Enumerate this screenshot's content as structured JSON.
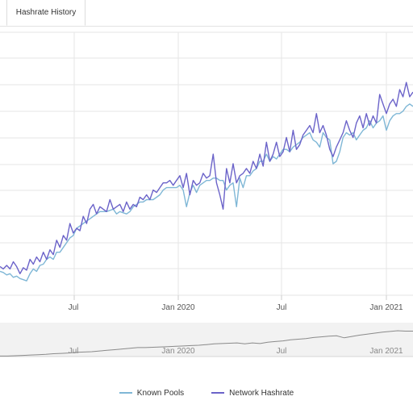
{
  "tabs": [
    {
      "label": "Hashrate History"
    }
  ],
  "chart_data": {
    "type": "line",
    "title": "",
    "xlabel": "",
    "ylabel": "",
    "x_ticks": [
      "Jul",
      "Jan 2020",
      "Jul",
      "Jan 2021"
    ],
    "navigator_ticks": [
      "Jul",
      "Jan 2020",
      "Jul",
      "Jan 2021"
    ],
    "grid": true,
    "legend_position": "bottom-center",
    "ylim": [
      0,
      11
    ],
    "x": [
      0,
      1,
      2,
      3,
      4,
      5,
      6,
      7,
      8,
      9,
      10,
      11,
      12,
      13,
      14,
      15,
      16,
      17,
      18,
      19,
      20,
      21,
      22,
      23,
      24,
      25,
      26,
      27,
      28,
      29,
      30,
      31,
      32,
      33,
      34,
      35,
      36,
      37,
      38,
      39,
      40,
      41,
      42,
      43,
      44,
      45,
      46,
      47,
      48,
      49,
      50,
      51,
      52,
      53,
      54,
      55,
      56,
      57,
      58,
      59,
      60,
      61,
      62,
      63,
      64,
      65,
      66,
      67,
      68,
      69,
      70,
      71,
      72,
      73,
      74,
      75,
      76,
      77,
      78,
      79,
      80,
      81,
      82,
      83,
      84,
      85,
      86,
      87,
      88,
      89,
      90,
      91,
      92,
      93,
      94,
      95,
      96,
      97,
      98,
      99,
      100,
      101,
      102,
      103,
      104,
      105,
      106,
      107,
      108,
      109,
      110,
      111,
      112,
      113,
      114,
      115,
      116,
      117,
      118,
      119,
      120,
      121,
      122,
      123,
      124
    ],
    "series": [
      {
        "name": "Known Pools",
        "color": "#7fb7d6",
        "values": [
          1.0,
          0.95,
          0.85,
          0.9,
          0.75,
          0.8,
          0.7,
          0.65,
          0.6,
          0.9,
          1.1,
          1.0,
          1.25,
          1.3,
          1.5,
          1.6,
          1.5,
          1.8,
          1.8,
          2.0,
          2.2,
          2.4,
          2.5,
          2.8,
          2.9,
          3.0,
          3.1,
          3.2,
          3.3,
          3.4,
          3.5,
          3.5,
          3.5,
          3.55,
          3.6,
          3.4,
          3.5,
          3.45,
          3.4,
          3.5,
          3.7,
          3.8,
          3.9,
          3.9,
          4.0,
          4.0,
          4.0,
          4.1,
          4.2,
          4.4,
          4.5,
          4.5,
          4.5,
          4.5,
          4.6,
          4.4,
          3.7,
          4.3,
          4.6,
          4.3,
          4.6,
          4.7,
          4.8,
          4.8,
          4.9,
          4.9,
          4.8,
          4.8,
          4.4,
          4.6,
          4.7,
          3.7,
          4.9,
          4.5,
          5.0,
          5.0,
          5.2,
          5.3,
          5.6,
          5.6,
          5.9,
          5.6,
          5.8,
          5.7,
          5.9,
          6.1,
          6.1,
          6.0,
          6.2,
          6.3,
          6.4,
          6.6,
          6.7,
          6.8,
          6.5,
          6.4,
          6.2,
          6.8,
          6.6,
          6.5,
          5.5,
          5.6,
          6.0,
          6.6,
          6.8,
          6.7,
          6.8,
          6.5,
          6.7,
          6.9,
          7.0,
          7.3,
          7.0,
          7.2,
          7.3,
          7.5,
          6.9,
          7.3,
          7.5,
          7.6,
          7.6,
          7.7,
          7.9,
          8.0,
          7.9
        ]
      },
      {
        "name": "Network Hashrate",
        "color": "#6b63c9",
        "values": [
          1.2,
          1.1,
          1.25,
          1.1,
          1.4,
          1.2,
          0.9,
          1.15,
          1.05,
          1.5,
          1.3,
          1.6,
          1.4,
          1.8,
          1.5,
          1.9,
          1.7,
          2.3,
          2.0,
          2.5,
          2.3,
          3.0,
          2.6,
          2.8,
          2.7,
          3.3,
          3.0,
          3.6,
          3.8,
          3.4,
          3.7,
          3.6,
          3.5,
          4.0,
          3.6,
          3.7,
          3.8,
          3.5,
          3.9,
          3.6,
          3.8,
          3.7,
          4.1,
          4.0,
          4.2,
          4.0,
          4.4,
          4.3,
          4.5,
          4.7,
          4.7,
          4.8,
          4.6,
          4.8,
          5.0,
          4.5,
          5.1,
          4.2,
          4.8,
          4.6,
          4.7,
          5.1,
          4.9,
          5.0,
          5.9,
          4.7,
          4.2,
          3.6,
          5.3,
          4.7,
          5.5,
          4.7,
          5.0,
          5.1,
          5.3,
          5.1,
          5.6,
          5.3,
          5.9,
          5.4,
          6.4,
          5.6,
          5.9,
          6.4,
          5.8,
          6.0,
          6.6,
          6.0,
          6.9,
          6.1,
          6.3,
          6.7,
          6.9,
          7.1,
          6.8,
          7.6,
          6.8,
          7.1,
          6.7,
          6.1,
          5.8,
          6.2,
          6.5,
          6.8,
          7.3,
          6.9,
          6.6,
          7.2,
          7.5,
          7.0,
          7.6,
          7.1,
          7.5,
          7.2,
          8.4,
          8.0,
          7.6,
          8.0,
          8.2,
          7.9,
          8.6,
          8.3,
          8.9,
          8.3,
          8.5
        ]
      }
    ],
    "navigator_values": [
      1.1,
      1.1,
      1.2,
      1.3,
      1.4,
      1.5,
      1.6,
      1.8,
      1.9,
      2.0,
      2.2,
      2.3,
      2.4,
      2.6,
      2.8,
      3.0,
      3.2,
      3.4,
      3.6,
      3.6,
      3.7,
      3.8,
      3.9,
      4.0,
      4.1,
      4.2,
      4.3,
      4.5,
      4.7,
      4.8,
      4.9,
      5.0,
      4.7,
      5.0,
      4.8,
      5.2,
      5.4,
      5.6,
      5.9,
      6.1,
      6.3,
      6.6,
      6.8,
      7.0,
      7.1,
      6.5,
      6.9,
      7.3,
      7.6,
      7.9,
      8.2,
      8.4,
      8.6,
      8.5,
      8.5
    ]
  }
}
